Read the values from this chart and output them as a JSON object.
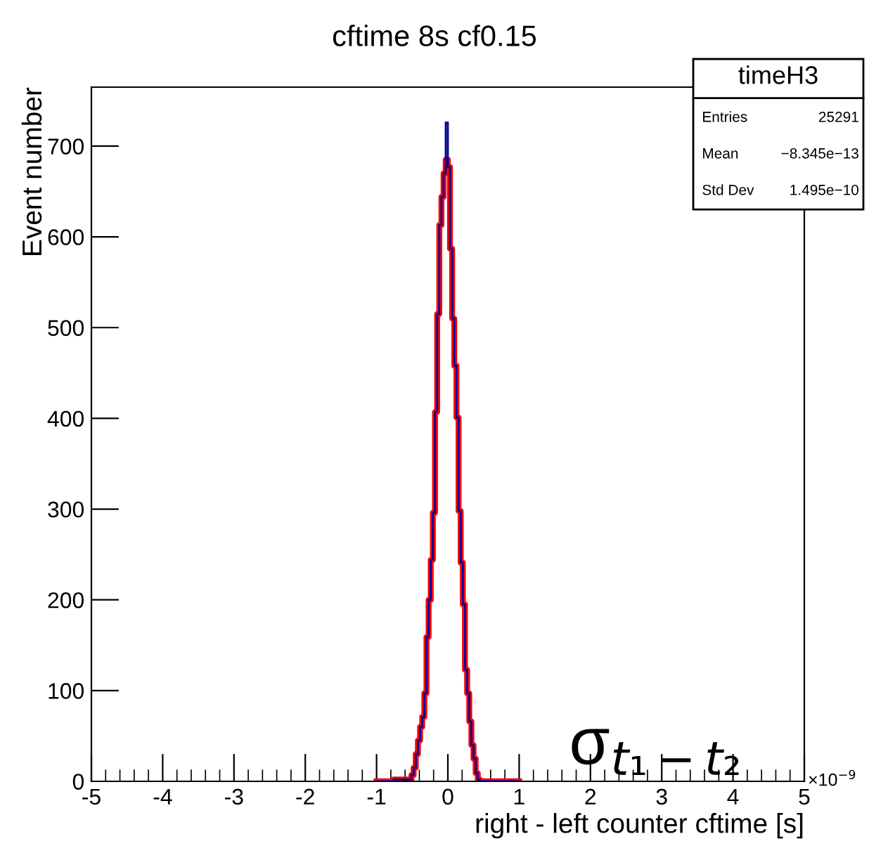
{
  "chart_data": {
    "type": "step",
    "title": "cftime 8s cf0.15",
    "xlabel": "right - left counter cftime [s]",
    "ylabel": "Event number",
    "series": [
      {
        "color": "#000099",
        "x": [
          -1,
          -0.525,
          -0.495,
          -0.465,
          -0.435,
          -0.405,
          -0.375,
          -0.345,
          -0.315,
          -0.285,
          -0.255,
          -0.225,
          -0.195,
          -0.165,
          -0.135,
          -0.105,
          -0.075,
          -0.045,
          -0.015,
          0.015,
          0.045,
          0.075,
          0.105,
          0.135,
          0.165,
          0.195,
          0.225,
          0.255,
          0.285,
          0.315,
          0.345,
          0.375,
          0.405,
          0.435,
          0.465,
          1
        ],
        "values": [
          0,
          2,
          7,
          15,
          30,
          45,
          60,
          71,
          97,
          159,
          200,
          244,
          296,
          407,
          515,
          613,
          644,
          670,
          726,
          677,
          587,
          510,
          458,
          401,
          298,
          241,
          195,
          123,
          97,
          66,
          40,
          25,
          9,
          2,
          0,
          0
        ]
      },
      {
        "color": "#ff0000",
        "x": [
          -1,
          -0.525,
          -0.495,
          -0.465,
          -0.435,
          -0.405,
          -0.375,
          -0.345,
          -0.315,
          -0.285,
          -0.255,
          -0.225,
          -0.195,
          -0.165,
          -0.135,
          -0.105,
          -0.075,
          -0.045,
          -0.015,
          0.015,
          0.045,
          0.075,
          0.105,
          0.135,
          0.165,
          0.195,
          0.225,
          0.255,
          0.285,
          0.315,
          0.345,
          0.375,
          0.405,
          0.435,
          0.465,
          1
        ],
        "values": [
          0,
          2,
          7,
          15,
          30,
          45,
          60,
          71,
          97,
          159,
          200,
          244,
          296,
          407,
          515,
          613,
          644,
          670,
          685,
          677,
          587,
          510,
          458,
          401,
          298,
          241,
          195,
          123,
          97,
          66,
          40,
          25,
          9,
          2,
          0,
          0
        ]
      }
    ],
    "xlim": [
      -5,
      5
    ],
    "xticks": [
      -5,
      -4,
      -3,
      -2,
      -1,
      0,
      1,
      2,
      3,
      4,
      5
    ],
    "ylim": [
      0,
      765
    ],
    "yticks": [
      0,
      100,
      200,
      300,
      400,
      500,
      600,
      700
    ],
    "grid": false,
    "legend": false,
    "annotations": [
      "timeH3",
      "Entries",
      "25291",
      "Mean",
      "−8.345e−13",
      "Std Dev",
      "1.495e−10",
      "σ$_{t₁−t₂}$",
      "×10$^{−9}$"
    ]
  }
}
